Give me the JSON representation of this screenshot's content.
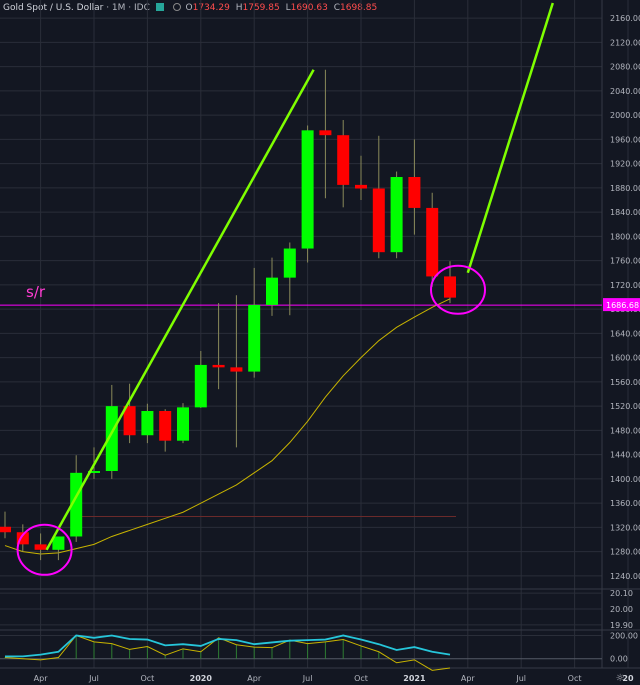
{
  "header": {
    "symbol": "Gold Spot / U.S. Dollar",
    "interval": "1M",
    "source": "IDC",
    "open_label": "O",
    "open": "1734.29",
    "high_label": "H",
    "high": "1759.85",
    "low_label": "L",
    "low": "1690.63",
    "close_label": "C",
    "close": "1698.85"
  },
  "colors": {
    "background": "#131722",
    "grid": "#2a2e39",
    "up": "#00ff00",
    "down": "#ff0000",
    "trendline": "#7fff00",
    "sr_line": "#ff00ff",
    "ma_line": "#c8b400",
    "osc_line_1": "#26c6da",
    "osc_line_2": "#c8b400"
  },
  "annotations": {
    "sr_label": "s/r",
    "sr_price_tag": "1686.68"
  },
  "chart_data": [
    {
      "type": "candlestick",
      "title": "Gold Spot / U.S. Dollar",
      "x_tick_labels": [
        "Apr",
        "Jul",
        "Oct",
        "2020",
        "Apr",
        "Jul",
        "Oct",
        "2021",
        "Apr",
        "Jul",
        "Oct",
        "20"
      ],
      "y_ticks": [
        1240,
        1280,
        1320,
        1360,
        1400,
        1440,
        1480,
        1520,
        1560,
        1600,
        1640,
        1680,
        1720,
        1760,
        1800,
        1840,
        1880,
        1920,
        1960,
        2000,
        2040,
        2080,
        2120,
        2160
      ],
      "ylim": [
        1220,
        2190
      ],
      "grid": true,
      "months": [
        "2019-02",
        "2019-03",
        "2019-04",
        "2019-05",
        "2019-06",
        "2019-07",
        "2019-08",
        "2019-09",
        "2019-10",
        "2019-11",
        "2019-12",
        "2020-01",
        "2020-02",
        "2020-03",
        "2020-04",
        "2020-05",
        "2020-06",
        "2020-07",
        "2020-08",
        "2020-09",
        "2020-10",
        "2020-11",
        "2020-12",
        "2021-01",
        "2021-02",
        "2021-03"
      ],
      "open": [
        1321,
        1312,
        1292,
        1283,
        1305,
        1410,
        1413,
        1520,
        1472,
        1512,
        1463,
        1518,
        1588,
        1584,
        1577,
        1687,
        1732,
        1780,
        1975,
        1967,
        1885,
        1879,
        1774,
        1898,
        1847,
        1734
      ],
      "high": [
        1346,
        1325,
        1310,
        1301,
        1439,
        1452,
        1555,
        1557,
        1524,
        1515,
        1525,
        1611,
        1690,
        1703,
        1748,
        1765,
        1790,
        1983,
        2075,
        1992,
        1933,
        1966,
        1907,
        1960,
        1872,
        1759
      ],
      "low": [
        1302,
        1280,
        1266,
        1266,
        1296,
        1400,
        1400,
        1459,
        1459,
        1445,
        1459,
        1517,
        1548,
        1452,
        1567,
        1669,
        1670,
        1757,
        1863,
        1848,
        1860,
        1764,
        1764,
        1803,
        1717,
        1690
      ],
      "close": [
        1312,
        1292,
        1283,
        1305,
        1410,
        1413,
        1520,
        1472,
        1512,
        1463,
        1518,
        1588,
        1584,
        1577,
        1687,
        1732,
        1780,
        1975,
        1967,
        1885,
        1879,
        1774,
        1898,
        1847,
        1734,
        1699
      ],
      "ma_20": [
        1290,
        1280,
        1276,
        1278,
        1285,
        1292,
        1305,
        1315,
        1325,
        1335,
        1345,
        1360,
        1375,
        1390,
        1410,
        1430,
        1460,
        1495,
        1535,
        1570,
        1600,
        1628,
        1650,
        1667,
        1683,
        1697
      ],
      "sr_level": 1686.68,
      "trendline_1": [
        {
          "month": "2019-04",
          "price": 1283
        },
        {
          "month": "2020-07",
          "price": 2075
        }
      ],
      "trendline_2": [
        {
          "month": "2021-04",
          "price": 1740
        },
        {
          "month": "2021-09",
          "price": 2185
        }
      ],
      "circles": [
        "2019-04",
        "2021-03"
      ],
      "s_r_label": "s/r"
    },
    {
      "type": "line",
      "y_ticks": [
        20.1,
        20.0,
        19.9
      ],
      "ylim": [
        19.88,
        20.12
      ],
      "series": []
    },
    {
      "type": "line",
      "y_ticks": [
        200.0,
        0.0
      ],
      "ylim": [
        -80,
        230
      ],
      "series": [
        {
          "values": [
            20,
            20,
            35,
            60,
            200,
            180,
            200,
            170,
            165,
            115,
            125,
            110,
            170,
            160,
            125,
            140,
            155,
            160,
            165,
            200,
            165,
            125,
            75,
            100,
            60,
            35
          ]
        },
        {
          "values": [
            10,
            0,
            -10,
            10,
            200,
            145,
            130,
            80,
            105,
            30,
            85,
            60,
            180,
            120,
            100,
            95,
            160,
            130,
            145,
            165,
            110,
            60,
            -35,
            -10,
            -100,
            -80
          ]
        }
      ],
      "zero_line": true
    }
  ]
}
